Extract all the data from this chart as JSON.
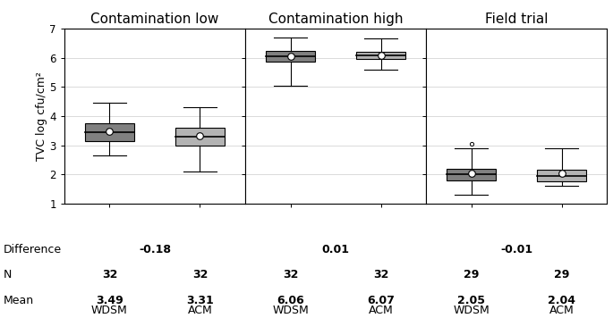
{
  "ylim": [
    1,
    7
  ],
  "yticks": [
    1,
    2,
    3,
    4,
    5,
    6,
    7
  ],
  "panels": [
    {
      "title": "Contamination low",
      "boxes": [
        {
          "label": "WDSM",
          "color": "#808080",
          "q1": 3.15,
          "median": 3.45,
          "q3": 3.75,
          "whisker_low": 2.65,
          "whisker_high": 4.45,
          "mean": 3.49,
          "outliers": []
        },
        {
          "label": "ACM",
          "color": "#b3b3b3",
          "q1": 3.0,
          "median": 3.3,
          "q3": 3.6,
          "whisker_low": 2.1,
          "whisker_high": 4.3,
          "mean": 3.31,
          "outliers": []
        }
      ],
      "difference": "-0.18",
      "n_values": [
        "32",
        "32"
      ],
      "mean_values": [
        "3.49",
        "3.31"
      ]
    },
    {
      "title": "Contamination high",
      "boxes": [
        {
          "label": "WDSM",
          "color": "#808080",
          "q1": 5.88,
          "median": 6.05,
          "q3": 6.25,
          "whisker_low": 5.05,
          "whisker_high": 6.7,
          "mean": 6.06,
          "outliers": []
        },
        {
          "label": "ACM",
          "color": "#b3b3b3",
          "q1": 5.95,
          "median": 6.07,
          "q3": 6.2,
          "whisker_low": 5.6,
          "whisker_high": 6.65,
          "mean": 6.07,
          "outliers": []
        }
      ],
      "difference": "0.01",
      "n_values": [
        "32",
        "32"
      ],
      "mean_values": [
        "6.06",
        "6.07"
      ]
    },
    {
      "title": "Field trial",
      "boxes": [
        {
          "label": "WDSM",
          "color": "#808080",
          "q1": 1.8,
          "median": 2.0,
          "q3": 2.2,
          "whisker_low": 1.3,
          "whisker_high": 2.9,
          "mean": 2.05,
          "outliers": [
            3.05
          ]
        },
        {
          "label": "ACM",
          "color": "#b3b3b3",
          "q1": 1.75,
          "median": 1.95,
          "q3": 2.15,
          "whisker_low": 1.6,
          "whisker_high": 2.9,
          "mean": 2.04,
          "outliers": []
        }
      ],
      "difference": "-0.01",
      "n_values": [
        "29",
        "29"
      ],
      "mean_values": [
        "2.05",
        "2.04"
      ]
    }
  ],
  "ylabel": "TVC log cfu/cm²",
  "box_width": 0.55,
  "positions": [
    1,
    2
  ],
  "bg_color": "#ffffff",
  "grid_color": "#cccccc",
  "table_rows": [
    "Difference",
    "N",
    "Mean"
  ],
  "title_fontsize": 11,
  "label_fontsize": 9,
  "tick_fontsize": 8.5,
  "table_fontsize": 9
}
